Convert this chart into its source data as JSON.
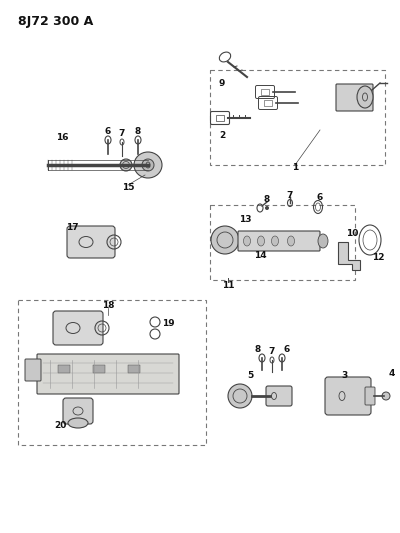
{
  "title": "8J72 300 A",
  "bg_color": "#ffffff",
  "line_color": "#444444",
  "text_color": "#111111",
  "title_fontsize": 9,
  "label_fontsize": 6.5,
  "figsize": [
    4.0,
    5.33
  ],
  "dpi": 100
}
